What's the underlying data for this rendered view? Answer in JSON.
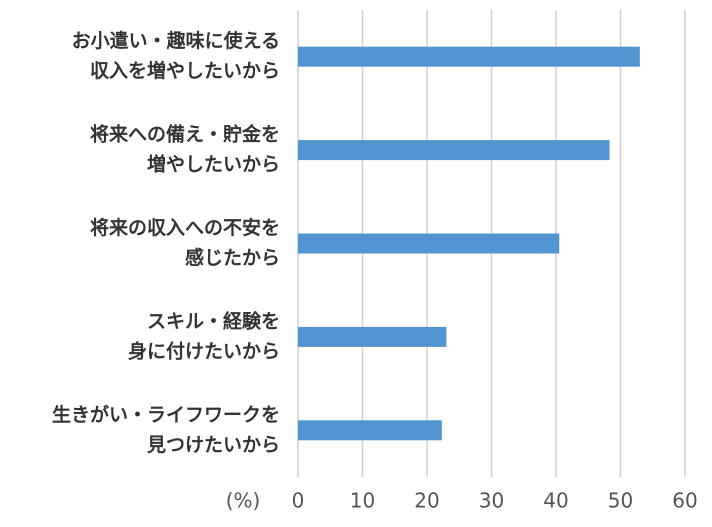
{
  "chart_data": {
    "type": "barh",
    "categories": [
      [
        "お小遣い・趣味に使える",
        "収入を増やしたいから"
      ],
      [
        "将来への備え・貯金を",
        "増やしたいから"
      ],
      [
        "将来の収入への不安を",
        "感じたから"
      ],
      [
        "スキル・経験を",
        "身に付けたいから"
      ],
      [
        "生きがい・ライフワークを",
        "見つけたいから"
      ]
    ],
    "values": [
      53,
      48.3,
      40.5,
      23,
      22.3
    ],
    "color": "#5294cf",
    "x_label": "(%)",
    "xlim": [
      0,
      60
    ],
    "xticks": [
      0,
      10,
      20,
      30,
      40,
      50,
      60
    ],
    "grid": true
  }
}
